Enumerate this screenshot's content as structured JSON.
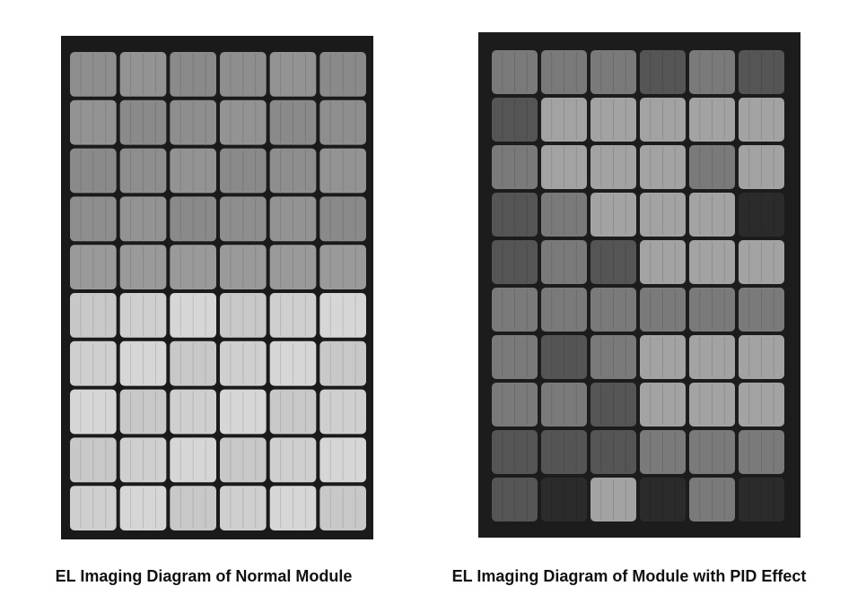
{
  "figure": {
    "panels": [
      {
        "caption": "EL Imaging Diagram of Normal Module"
      },
      {
        "caption": "EL Imaging Diagram of Module with PID Effect"
      }
    ]
  }
}
